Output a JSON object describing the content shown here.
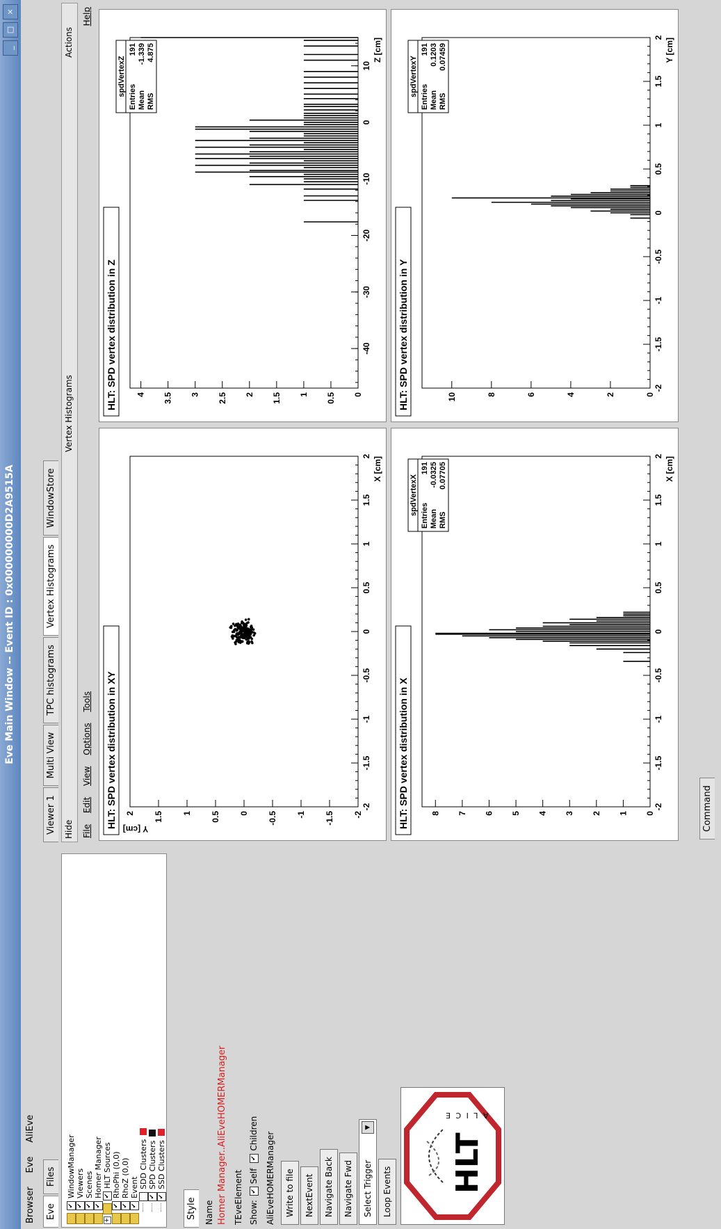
{
  "window": {
    "title": "Eve Main Window -- Event ID : 0x000000000D2A9515A",
    "min_label": "_",
    "max_label": "□",
    "close_label": "×"
  },
  "menubar": [
    "Browser",
    "Eve",
    "AliEve"
  ],
  "left_tabs": [
    "Eve",
    "Files"
  ],
  "tree": [
    {
      "label": "WindowManager",
      "indent": 0,
      "checked": true,
      "folder": true
    },
    {
      "label": "Viewers",
      "indent": 0,
      "checked": true,
      "folder": true
    },
    {
      "label": "Scenes",
      "indent": 0,
      "checked": true,
      "folder": true
    },
    {
      "label": "Homer Manager",
      "indent": 0,
      "checked": true,
      "folder": true
    },
    {
      "label": "HLT Sources",
      "indent": 0,
      "checked": true,
      "folder": true,
      "expander": "+"
    },
    {
      "label": "RhoPhi (0,0)",
      "indent": 0,
      "checked": true,
      "folder": true
    },
    {
      "label": "RhoZ (0,0)",
      "indent": 0,
      "checked": true,
      "folder": true
    },
    {
      "label": "Event",
      "indent": 0,
      "checked": true,
      "folder": true
    },
    {
      "label": "SDD Clusters",
      "indent": 1,
      "checked": false,
      "swatch": "#e0202a"
    },
    {
      "label": "SPD Clusters",
      "indent": 1,
      "checked": true,
      "swatch": "#101010"
    },
    {
      "label": "SSD Clusters",
      "indent": 1,
      "checked": true,
      "swatch": "#e0202a"
    }
  ],
  "editor": {
    "tab": "Style",
    "name_label": "Name",
    "name_value": "Homer Manager..AliEveHOMERManager",
    "class_label": "TEveElement",
    "show_label": "Show:",
    "self_label": "Self",
    "children_label": "Children",
    "homer_label": "AliEveHOMERManager",
    "buttons": [
      "Write to file",
      "NextEvent",
      "Navigate Back",
      "Navigate Fwd"
    ],
    "trigger_label": "Select Trigger",
    "loop_label": "Loop Events",
    "logo_text": "HLT",
    "logo_sub": "A L I C E"
  },
  "right_tabs": [
    "Viewer 1",
    "Multi View",
    "TPC histograms",
    "Vertex Histograms",
    "WindowStore"
  ],
  "active_right_tab": 3,
  "right_header": {
    "hide": "Hide",
    "title": "Vertex Histograms",
    "actions": "Actions",
    "help": "Help"
  },
  "canvas_menu": [
    "File",
    "Edit",
    "View",
    "Options",
    "Tools"
  ],
  "status": {
    "command_tab": "Command"
  },
  "chart_data": [
    {
      "type": "scatter",
      "title": "HLT: SPD vertex distribution in XY",
      "xlabel": "X [cm]",
      "ylabel": "Y [cm]",
      "xlim": [
        -2,
        2
      ],
      "ylim": [
        -2,
        2
      ],
      "xticks": [
        "-2",
        "-1.5",
        "-1",
        "-0.5",
        "0",
        "0.5",
        "1",
        "1.5",
        "2"
      ],
      "yticks": [
        "-2",
        "-1.5",
        "-1",
        "-0.5",
        "0",
        "0.5",
        "1",
        "1.5",
        "2"
      ],
      "cluster_center": [
        0.0,
        0.02
      ],
      "cluster_spread": [
        0.08,
        0.12
      ],
      "n_points": 191
    },
    {
      "type": "bar",
      "title": "HLT: SPD vertex distribution in Z",
      "xlabel": "Z [cm]",
      "ylabel": "",
      "xlim": [
        -47,
        15
      ],
      "ylim": [
        0,
        4.2
      ],
      "xticks": [
        "-40",
        "-30",
        "-20",
        "-10",
        "0",
        "10"
      ],
      "yticks": [
        "0",
        "0.5",
        "1",
        "1.5",
        "2",
        "2.5",
        "3",
        "3.5",
        "4"
      ],
      "stats": {
        "name": "spdVertexZ",
        "Entries": "191",
        "Mean": "-1.339",
        "RMS": "4.875"
      },
      "bars": [
        [
          -17.6,
          1
        ],
        [
          -13.8,
          1
        ],
        [
          -13,
          1
        ],
        [
          -11.8,
          1
        ],
        [
          -11,
          2
        ],
        [
          -10.5,
          1
        ],
        [
          -10,
          1
        ],
        [
          -9.6,
          2
        ],
        [
          -9.2,
          1
        ],
        [
          -8.8,
          3
        ],
        [
          -8.5,
          2
        ],
        [
          -8,
          1
        ],
        [
          -7.6,
          3
        ],
        [
          -7.2,
          2
        ],
        [
          -6.8,
          1
        ],
        [
          -6.4,
          3
        ],
        [
          -6,
          2
        ],
        [
          -5.6,
          3
        ],
        [
          -5.2,
          2
        ],
        [
          -4.8,
          1
        ],
        [
          -4.4,
          3
        ],
        [
          -4,
          2
        ],
        [
          -3.6,
          1
        ],
        [
          -3.2,
          3
        ],
        [
          -2.8,
          2
        ],
        [
          -2.4,
          1
        ],
        [
          -2,
          1
        ],
        [
          -1.6,
          2
        ],
        [
          -1.2,
          3
        ],
        [
          -0.8,
          3
        ],
        [
          -0.4,
          1
        ],
        [
          0,
          1
        ],
        [
          0.4,
          2
        ],
        [
          0.8,
          1
        ],
        [
          1.2,
          1
        ],
        [
          1.6,
          1
        ],
        [
          2.2,
          1
        ],
        [
          2.8,
          1
        ],
        [
          3.2,
          1
        ],
        [
          4.2,
          1
        ],
        [
          5,
          1
        ],
        [
          6,
          1
        ],
        [
          7,
          1
        ],
        [
          8,
          1
        ],
        [
          9,
          1
        ],
        [
          11,
          1
        ],
        [
          12,
          1
        ],
        [
          13.5,
          1
        ],
        [
          14.5,
          1
        ],
        [
          15,
          4
        ]
      ]
    },
    {
      "type": "bar",
      "title": "HLT: SPD vertex distribution in X",
      "xlabel": "X [cm]",
      "ylabel": "",
      "xlim": [
        -2,
        2
      ],
      "ylim": [
        0,
        8.5
      ],
      "xticks": [
        "-2",
        "-1.5",
        "-1",
        "-0.5",
        "0",
        "0.5",
        "1",
        "1.5",
        "2"
      ],
      "yticks": [
        "0",
        "1",
        "2",
        "3",
        "4",
        "5",
        "6",
        "7",
        "8"
      ],
      "stats": {
        "name": "spdVertexX",
        "Entries": "191",
        "Mean": "-0.0325",
        "RMS": "0.07705"
      },
      "bars": [
        [
          -0.34,
          1
        ],
        [
          -0.24,
          1
        ],
        [
          -0.2,
          2
        ],
        [
          -0.16,
          3
        ],
        [
          -0.13,
          3
        ],
        [
          -0.11,
          4
        ],
        [
          -0.09,
          5
        ],
        [
          -0.07,
          6
        ],
        [
          -0.05,
          7
        ],
        [
          -0.03,
          8
        ],
        [
          -0.02,
          8
        ],
        [
          0.0,
          5
        ],
        [
          0.02,
          6
        ],
        [
          0.04,
          5
        ],
        [
          0.06,
          4
        ],
        [
          0.08,
          3
        ],
        [
          0.1,
          4
        ],
        [
          0.12,
          2
        ],
        [
          0.14,
          3
        ],
        [
          0.16,
          2
        ],
        [
          0.18,
          1
        ],
        [
          0.2,
          1
        ],
        [
          0.22,
          1
        ]
      ]
    },
    {
      "type": "bar",
      "title": "HLT: SPD vertex distribution in Y",
      "xlabel": "Y [cm]",
      "ylabel": "",
      "xlim": [
        -2,
        2
      ],
      "ylim": [
        0,
        11.5
      ],
      "xticks": [
        "-2",
        "-1.5",
        "-1",
        "-0.5",
        "0",
        "0.5",
        "1",
        "1.5",
        "2"
      ],
      "yticks": [
        "0",
        "2",
        "4",
        "6",
        "8",
        "10"
      ],
      "stats": {
        "name": "spdVertexY",
        "Entries": "191",
        "Mean": "0.1203",
        "RMS": "0.07459"
      },
      "bars": [
        [
          -0.06,
          1
        ],
        [
          -0.02,
          1
        ],
        [
          0.0,
          2
        ],
        [
          0.02,
          3
        ],
        [
          0.04,
          2
        ],
        [
          0.06,
          4
        ],
        [
          0.08,
          5
        ],
        [
          0.1,
          6
        ],
        [
          0.12,
          8
        ],
        [
          0.14,
          5
        ],
        [
          0.16,
          4
        ],
        [
          0.17,
          10
        ],
        [
          0.19,
          5
        ],
        [
          0.21,
          4
        ],
        [
          0.23,
          3
        ],
        [
          0.25,
          2
        ],
        [
          0.27,
          2
        ],
        [
          0.29,
          1
        ],
        [
          0.31,
          1
        ]
      ]
    }
  ]
}
